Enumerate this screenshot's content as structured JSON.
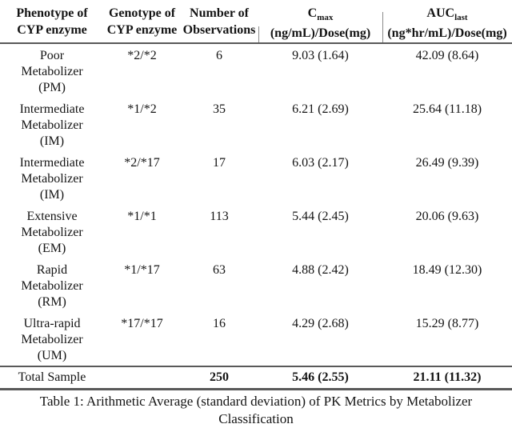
{
  "colors": {
    "background": "#ffffff",
    "text": "#141414",
    "rule": "#595959",
    "header_cell_tick": "#8a8a8a"
  },
  "table": {
    "columns": [
      {
        "id": "phenotype",
        "header_lines": [
          "Phenotype of",
          "CYP enzyme"
        ]
      },
      {
        "id": "genotype",
        "header_lines": [
          "Genotype of",
          "CYP enzyme"
        ]
      },
      {
        "id": "observations",
        "header_lines": [
          "Number of",
          "Observations"
        ]
      },
      {
        "id": "cmax",
        "header_main": "C",
        "header_sub": "max",
        "header_unit": "(ng/mL)/Dose(mg)"
      },
      {
        "id": "auc_last",
        "header_main": "AUC",
        "header_sub": "last",
        "header_unit": "(ng*hr/mL)/Dose(mg)"
      }
    ],
    "rows": [
      {
        "phenotype_lines": [
          "Poor",
          "Metabolizer",
          "(PM)"
        ],
        "genotype": "*2/*2",
        "observations": "6",
        "cmax": "9.03 (1.64)",
        "auc_last": "42.09 (8.64)"
      },
      {
        "phenotype_lines": [
          "Intermediate",
          "Metabolizer",
          "(IM)"
        ],
        "genotype": "*1/*2",
        "observations": "35",
        "cmax": "6.21 (2.69)",
        "auc_last": "25.64 (11.18)"
      },
      {
        "phenotype_lines": [
          "Intermediate",
          "Metabolizer",
          "(IM)"
        ],
        "genotype": "*2/*17",
        "observations": "17",
        "cmax": "6.03 (2.17)",
        "auc_last": "26.49 (9.39)"
      },
      {
        "phenotype_lines": [
          "Extensive",
          "Metabolizer",
          "(EM)"
        ],
        "genotype": "*1/*1",
        "observations": "113",
        "cmax": "5.44 (2.45)",
        "auc_last": "20.06 (9.63)"
      },
      {
        "phenotype_lines": [
          "Rapid",
          "Metabolizer",
          "(RM)"
        ],
        "genotype": "*1/*17",
        "observations": "63",
        "cmax": "4.88 (2.42)",
        "auc_last": "18.49 (12.30)"
      },
      {
        "phenotype_lines": [
          "Ultra-rapid",
          "Metabolizer",
          "(UM)"
        ],
        "genotype": "*17/*17",
        "observations": "16",
        "cmax": "4.29 (2.68)",
        "auc_last": "15.29 (8.77)"
      }
    ],
    "total": {
      "label": "Total Sample",
      "genotype": "",
      "observations": "250",
      "cmax": "5.46 (2.55)",
      "auc_last": "21.11 (11.32)"
    }
  },
  "caption": {
    "line1": "Table 1: Arithmetic Average (standard deviation) of PK Metrics by Metabolizer",
    "line2": "Classification"
  }
}
